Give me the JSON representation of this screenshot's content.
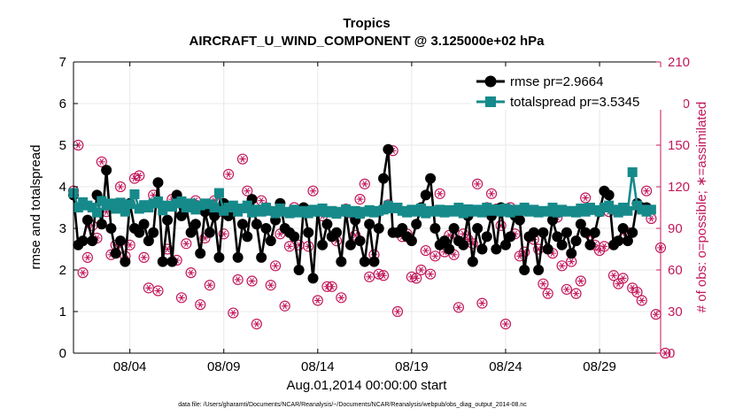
{
  "chart_data": {
    "type": "line",
    "title": "Tropics",
    "subtitle": "AIRCRAFT_U_WIND_COMPONENT @ 3.125000e+02 hPa",
    "xlabel": "Aug.01,2014 00:00:00 start",
    "ylabel": "rmse and totalspread",
    "y2label": "# of obs: o=possible; ∗=assimilated",
    "footnote": "data file: /Users/gharamti/Documents/NCAR/Reanalysis/~/Documents/NCAR/Reanalysis/webpub/obs_diag_output_2014-08.nc",
    "xlim": [
      1,
      32.25
    ],
    "ylim": [
      0,
      7
    ],
    "y2lim": [
      0,
      210
    ],
    "xticks": [
      4,
      9,
      14,
      19,
      24,
      29
    ],
    "xticklabels": [
      "08/04",
      "08/09",
      "08/14",
      "08/19",
      "08/24",
      "08/29"
    ],
    "yticks": [
      0,
      1,
      2,
      3,
      4,
      5,
      6,
      7
    ],
    "y2ticks": [
      0,
      30,
      60,
      90,
      120,
      150,
      180,
      210
    ],
    "series": [
      {
        "name": "rmse",
        "legend": "rmse pr=2.9664",
        "color": "#000000",
        "marker": "circle",
        "x_start": 1.0,
        "x_step": 0.25,
        "values": [
          3.8,
          2.6,
          2.7,
          3.2,
          2.7,
          3.8,
          3.1,
          4.4,
          3.0,
          2.4,
          2.7,
          2.2,
          3.6,
          3.0,
          2.9,
          3.1,
          2.7,
          2.9,
          4.1,
          2.2,
          3.2,
          2.2,
          3.8,
          3.3,
          3.5,
          2.9,
          3.1,
          2.4,
          3.4,
          2.9,
          3.3,
          2.3,
          3.6,
          3.3,
          3.4,
          2.3,
          3.1,
          2.8,
          3.7,
          3.1,
          2.3,
          3.0,
          2.7,
          3.2,
          3.6,
          3.0,
          2.9,
          2.8,
          2.0,
          3.5,
          2.9,
          1.8,
          3.4,
          2.6,
          3.1,
          2.8,
          2.9,
          2.2,
          3.4,
          2.6,
          3.2,
          2.7,
          2.2,
          3.1,
          2.2,
          3.0,
          4.2,
          4.9,
          2.9,
          2.9,
          3.0,
          2.8,
          2.7,
          3.1,
          3.5,
          3.8,
          4.2,
          3.0,
          2.6,
          2.7,
          2.5,
          3.0,
          2.7,
          2.6,
          3.3,
          2.2,
          3.0,
          2.5,
          2.8,
          3.3,
          2.5,
          3.5,
          2.6,
          2.8,
          3.3,
          3.2,
          2.0,
          2.8,
          2.9,
          2.0,
          2.9,
          2.5,
          3.2,
          2.8,
          2.6,
          2.9,
          2.4,
          2.7,
          3.1,
          2.9,
          2.6,
          2.9,
          3.4,
          3.9,
          3.8,
          2.6,
          2.7,
          3.0,
          2.7,
          2.9,
          3.6,
          3.5,
          3.5
        ]
      },
      {
        "name": "totalspread",
        "legend": "totalspread pr=3.5345",
        "color": "#168a8a",
        "marker": "square",
        "x_start": 1.0,
        "x_step": 0.25,
        "values": [
          3.85,
          3.5,
          3.63,
          3.55,
          3.5,
          3.38,
          3.66,
          3.55,
          3.6,
          3.47,
          3.62,
          3.4,
          3.58,
          3.82,
          3.47,
          3.56,
          3.5,
          3.6,
          3.65,
          3.43,
          3.55,
          3.52,
          3.6,
          3.65,
          3.5,
          3.6,
          3.45,
          3.55,
          3.6,
          3.58,
          3.5,
          3.85,
          3.42,
          3.5,
          3.55,
          3.4,
          3.48,
          3.55,
          3.38,
          3.45,
          3.4,
          3.5,
          3.42,
          3.36,
          3.48,
          3.4,
          3.36,
          3.45,
          3.38,
          3.42,
          3.36,
          3.45,
          3.4,
          3.48,
          3.38,
          3.42,
          3.35,
          3.4,
          3.46,
          3.38,
          3.42,
          3.35,
          3.4,
          3.44,
          3.38,
          3.42,
          3.45,
          3.55,
          3.48,
          3.5,
          3.42,
          3.38,
          3.45,
          3.4,
          3.48,
          3.36,
          3.42,
          3.4,
          3.45,
          3.38,
          3.44,
          3.4,
          3.5,
          3.36,
          3.46,
          3.4,
          3.45,
          3.38,
          3.5,
          3.42,
          3.46,
          3.4,
          3.48,
          3.38,
          3.45,
          3.42,
          3.5,
          3.4,
          3.45,
          3.38,
          3.42,
          3.4,
          3.5,
          3.38,
          3.45,
          3.4,
          3.42,
          3.38,
          3.48,
          3.4,
          3.5,
          3.44,
          3.4,
          3.5,
          3.55,
          3.45,
          3.38,
          3.5,
          3.42,
          4.35,
          3.55,
          3.45,
          3.4,
          3.45
        ]
      },
      {
        "name": "obs possible",
        "marker": "circle-open",
        "color": "#c2185b",
        "axis": "right",
        "x_start": 1.0,
        "x_step": 0.25,
        "values": [
          117,
          150,
          58,
          69,
          92,
          83,
          138,
          102,
          71,
          78,
          120,
          70,
          78,
          126,
          128,
          69,
          47,
          114,
          45,
          106,
          75,
          111,
          67,
          40,
          79,
          58,
          110,
          35,
          83,
          49,
          110,
          102,
          86,
          129,
          29,
          53,
          140,
          117,
          52,
          21,
          110,
          105,
          49,
          63,
          86,
          34,
          77,
          105,
          78,
          102,
          77,
          117,
          38,
          99,
          48,
          48,
          81,
          40,
          104,
          101,
          85,
          111,
          122,
          55,
          71,
          57,
          56,
          107,
          146,
          30,
          84,
          86,
          55,
          54,
          60,
          74,
          57,
          70,
          115,
          73,
          85,
          71,
          33,
          86,
          82,
          79,
          122,
          36,
          105,
          115,
          104,
          92,
          21,
          105,
          86,
          70,
          73,
          103,
          82,
          75,
          50,
          43,
          72,
          98,
          63,
          46,
          66,
          43,
          52,
          112,
          85,
          78,
          74,
          77,
          102,
          56,
          50,
          54,
          87,
          47,
          44,
          38,
          117,
          97,
          28,
          76,
          0
        ]
      },
      {
        "name": "obs assimilated",
        "marker": "asterisk",
        "color": "#c2185b",
        "axis": "right",
        "x_start": 1.0,
        "x_step": 0.25,
        "values": [
          117,
          150,
          58,
          69,
          92,
          83,
          138,
          102,
          71,
          78,
          120,
          70,
          78,
          126,
          128,
          69,
          47,
          114,
          45,
          106,
          75,
          111,
          67,
          40,
          79,
          58,
          110,
          35,
          83,
          49,
          110,
          102,
          86,
          129,
          29,
          53,
          140,
          117,
          52,
          21,
          110,
          105,
          49,
          63,
          86,
          34,
          77,
          105,
          78,
          102,
          77,
          117,
          38,
          99,
          48,
          48,
          81,
          40,
          104,
          101,
          85,
          111,
          122,
          55,
          71,
          57,
          56,
          107,
          146,
          30,
          84,
          86,
          55,
          54,
          60,
          74,
          57,
          70,
          115,
          73,
          85,
          71,
          33,
          86,
          82,
          79,
          122,
          36,
          105,
          115,
          104,
          92,
          21,
          105,
          86,
          70,
          73,
          103,
          82,
          75,
          50,
          43,
          72,
          98,
          63,
          46,
          66,
          43,
          52,
          112,
          85,
          78,
          74,
          77,
          102,
          56,
          50,
          54,
          87,
          47,
          44,
          38,
          117,
          97,
          28,
          76,
          0
        ]
      }
    ]
  }
}
